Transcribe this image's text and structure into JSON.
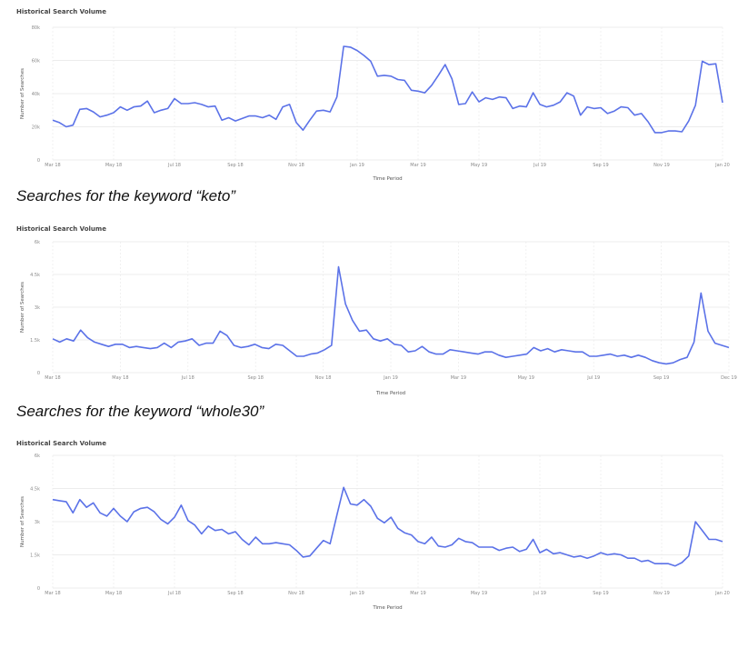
{
  "chart_data": [
    {
      "type": "line",
      "title": "Historical Search Volume",
      "xlabel": "Time Period",
      "ylabel": "Number of Searches",
      "ylim": [
        0,
        80000
      ],
      "yticks": [
        "0",
        "20k",
        "40k",
        "60k",
        "80k"
      ],
      "yticks_values": [
        0,
        20000,
        40000,
        60000,
        80000
      ],
      "xticks": [
        "Mar 18",
        "May 18",
        "Jul 18",
        "Sep 18",
        "Nov 18",
        "Jan 19",
        "Mar 19",
        "May 19",
        "Jul 19",
        "Sep 19",
        "Nov 19",
        "Jan 20"
      ],
      "grid": true,
      "line_color": "#5b72e8",
      "series": [
        {
          "name": "",
          "values": [
            24000,
            22500,
            20000,
            21000,
            30500,
            31000,
            29000,
            26000,
            27000,
            28500,
            32000,
            30000,
            32000,
            32500,
            35500,
            28500,
            30000,
            31000,
            37000,
            34000,
            34000,
            34500,
            33500,
            32000,
            32500,
            24000,
            25500,
            23500,
            25000,
            26500,
            26500,
            25500,
            27000,
            24500,
            32000,
            33500,
            22500,
            18000,
            24000,
            29500,
            30000,
            29000,
            38000,
            68500,
            68000,
            66000,
            63000,
            59500,
            50500,
            51000,
            50500,
            48500,
            48000,
            42000,
            41500,
            40500,
            45000,
            51000,
            57500,
            49000,
            33500,
            34000,
            41000,
            35000,
            37500,
            36500,
            38000,
            37500,
            31000,
            32500,
            32000,
            40500,
            33500,
            32000,
            33000,
            35000,
            40500,
            38500,
            27000,
            32000,
            31000,
            31500,
            28000,
            29500,
            32000,
            31500,
            27000,
            28000,
            23000,
            16500,
            16500,
            17500,
            17500,
            17000,
            23500,
            33000,
            59500,
            57500,
            58000,
            34500
          ]
        }
      ]
    },
    {
      "type": "line",
      "title": "Historical Search Volume",
      "caption": "Searches for the keyword “keto”",
      "xlabel": "Time Period",
      "ylabel": "Number of Searches",
      "ylim": [
        0,
        6000
      ],
      "yticks": [
        "0",
        "1.5k",
        "3k",
        "4.5k",
        "6k"
      ],
      "yticks_values": [
        0,
        1500,
        3000,
        4500,
        6000
      ],
      "xticks": [
        "Mar 18",
        "May 18",
        "Jul 18",
        "Sep 18",
        "Nov 18",
        "Jan 19",
        "Mar 19",
        "May 19",
        "Jul 19",
        "Sep 19",
        "Dec 19"
      ],
      "grid": true,
      "line_color": "#5b72e8",
      "series": [
        {
          "name": "",
          "values": [
            1550,
            1400,
            1550,
            1450,
            1950,
            1600,
            1400,
            1300,
            1200,
            1300,
            1300,
            1150,
            1200,
            1150,
            1100,
            1150,
            1350,
            1150,
            1400,
            1450,
            1550,
            1250,
            1350,
            1350,
            1900,
            1700,
            1250,
            1150,
            1200,
            1300,
            1150,
            1100,
            1300,
            1250,
            1000,
            750,
            750,
            850,
            900,
            1050,
            1250,
            4850,
            3150,
            2400,
            1900,
            1950,
            1550,
            1450,
            1550,
            1300,
            1250,
            950,
            1000,
            1200,
            950,
            850,
            850,
            1050,
            1000,
            950,
            900,
            850,
            950,
            950,
            800,
            700,
            750,
            800,
            850,
            1150,
            1000,
            1100,
            950,
            1050,
            1000,
            950,
            950,
            750,
            750,
            800,
            850,
            750,
            800,
            700,
            800,
            700,
            550,
            450,
            400,
            450,
            600,
            700,
            1400,
            3650,
            1900,
            1350,
            1250,
            1150
          ]
        }
      ]
    },
    {
      "type": "line",
      "title": "Historical Search Volume",
      "caption": "Searches for the keyword “whole30”",
      "xlabel": "Time Period",
      "ylabel": "Number of Searches",
      "ylim": [
        0,
        6000
      ],
      "yticks": [
        "0",
        "1.5k",
        "3k",
        "4.5k",
        "6k"
      ],
      "yticks_values": [
        0,
        1500,
        3000,
        4500,
        6000
      ],
      "xticks": [
        "Mar 18",
        "May 18",
        "Jul 18",
        "Sep 18",
        "Nov 18",
        "Jan 19",
        "Mar 19",
        "May 19",
        "Jul 19",
        "Sep 19",
        "Nov 19",
        "Jan 20"
      ],
      "grid": true,
      "line_color": "#5b72e8",
      "series": [
        {
          "name": "",
          "values": [
            4000,
            3950,
            3900,
            3400,
            4000,
            3650,
            3850,
            3400,
            3250,
            3600,
            3250,
            3000,
            3450,
            3600,
            3650,
            3450,
            3100,
            2900,
            3200,
            3750,
            3050,
            2850,
            2450,
            2800,
            2600,
            2650,
            2450,
            2550,
            2200,
            1950,
            2300,
            2000,
            2000,
            2050,
            2000,
            1950,
            1700,
            1400,
            1450,
            1800,
            2150,
            2000,
            3300,
            4550,
            3800,
            3750,
            4000,
            3700,
            3150,
            2950,
            3200,
            2700,
            2500,
            2400,
            2100,
            2000,
            2300,
            1900,
            1850,
            1950,
            2250,
            2100,
            2050,
            1850,
            1850,
            1850,
            1700,
            1800,
            1850,
            1650,
            1750,
            2200,
            1600,
            1750,
            1550,
            1600,
            1500,
            1400,
            1450,
            1350,
            1450,
            1600,
            1500,
            1550,
            1500,
            1350,
            1350,
            1200,
            1250,
            1100,
            1100,
            1100,
            1000,
            1150,
            1450,
            3000,
            2600,
            2200,
            2200,
            2100
          ]
        }
      ]
    }
  ]
}
